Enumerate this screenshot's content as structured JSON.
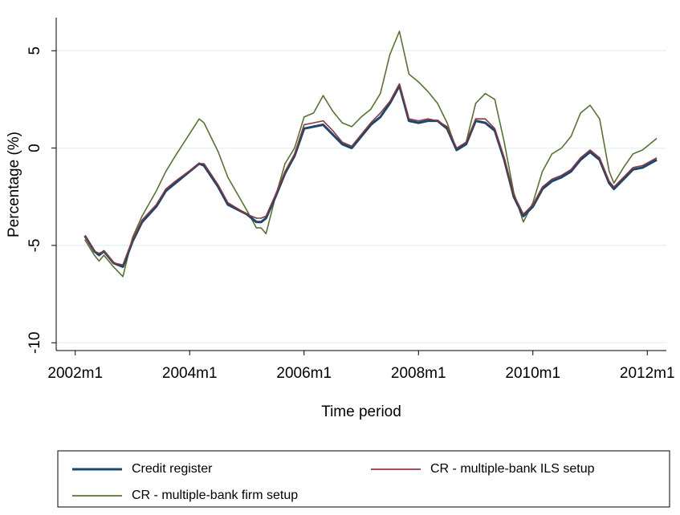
{
  "chart_data": {
    "type": "line",
    "xlabel": "Time period",
    "ylabel": "Percentage (%)",
    "x": [
      "2002m3",
      "2002m5",
      "2002m6",
      "2002m7",
      "2002m9",
      "2002m11",
      "2003m1",
      "2003m3",
      "2003m6",
      "2003m8",
      "2003m10",
      "2004m3",
      "2004m4",
      "2004m7",
      "2004m9",
      "2005m1",
      "2005m3",
      "2005m4",
      "2005m5",
      "2005m7",
      "2005m9",
      "2005m11",
      "2006m1",
      "2006m3",
      "2006m5",
      "2006m7",
      "2006m9",
      "2006m11",
      "2007m1",
      "2007m3",
      "2007m5",
      "2007m7",
      "2007m9",
      "2007m11",
      "2008m1",
      "2008m3",
      "2008m5",
      "2008m7",
      "2008m9",
      "2008m11",
      "2009m1",
      "2009m3",
      "2009m5",
      "2009m7",
      "2009m9",
      "2009m11",
      "2010m1",
      "2010m3",
      "2010m5",
      "2010m7",
      "2010m9",
      "2010m11",
      "2011m1",
      "2011m3",
      "2011m5",
      "2011m6",
      "2011m8",
      "2011m10",
      "2011m12",
      "2012m3"
    ],
    "series": [
      {
        "name": "Credit register",
        "color": "#1a476f",
        "values": [
          -4.5,
          -5.3,
          -5.5,
          -5.3,
          -5.9,
          -6.1,
          -4.8,
          -3.8,
          -3.0,
          -2.2,
          -1.8,
          -0.8,
          -0.9,
          -2.0,
          -2.9,
          -3.4,
          -3.8,
          -3.8,
          -3.6,
          -2.5,
          -1.3,
          -0.4,
          1.0,
          1.1,
          1.2,
          0.7,
          0.2,
          0.0,
          0.6,
          1.2,
          1.6,
          2.3,
          3.2,
          1.4,
          1.3,
          1.4,
          1.4,
          1.0,
          -0.1,
          0.2,
          1.4,
          1.3,
          0.9,
          -0.6,
          -2.5,
          -3.5,
          -3.0,
          -2.1,
          -1.7,
          -1.5,
          -1.2,
          -0.6,
          -0.2,
          -0.6,
          -1.8,
          -2.1,
          -1.6,
          -1.1,
          -1.0,
          -0.6
        ]
      },
      {
        "name": "CR - multiple-bank ILS setup",
        "color": "#90353b",
        "values": [
          -4.5,
          -5.3,
          -5.4,
          -5.3,
          -5.9,
          -6.0,
          -4.7,
          -3.7,
          -2.9,
          -2.1,
          -1.7,
          -0.8,
          -0.8,
          -1.9,
          -2.8,
          -3.4,
          -3.6,
          -3.6,
          -3.5,
          -2.4,
          -1.2,
          -0.3,
          1.2,
          1.3,
          1.4,
          0.9,
          0.3,
          0.1,
          0.7,
          1.3,
          1.8,
          2.4,
          3.3,
          1.5,
          1.4,
          1.5,
          1.4,
          1.1,
          0.0,
          0.3,
          1.5,
          1.5,
          1.0,
          -0.5,
          -2.4,
          -3.4,
          -2.9,
          -2.0,
          -1.6,
          -1.4,
          -1.1,
          -0.5,
          -0.1,
          -0.5,
          -1.7,
          -2.0,
          -1.5,
          -1.0,
          -0.9,
          -0.5
        ]
      },
      {
        "name": "CR - multiple-bank firm setup",
        "color": "#55752f",
        "values": [
          -4.7,
          -5.5,
          -5.8,
          -5.5,
          -6.1,
          -6.6,
          -4.6,
          -3.5,
          -2.2,
          -1.2,
          -0.4,
          1.5,
          1.3,
          -0.2,
          -1.5,
          -3.2,
          -4.1,
          -4.1,
          -4.4,
          -2.5,
          -0.8,
          0.0,
          1.6,
          1.8,
          2.7,
          1.9,
          1.3,
          1.1,
          1.6,
          2.0,
          2.8,
          4.8,
          6.0,
          3.8,
          3.4,
          2.9,
          2.3,
          1.3,
          -0.1,
          0.3,
          2.3,
          2.8,
          2.5,
          0.3,
          -2.3,
          -3.8,
          -2.8,
          -1.2,
          -0.3,
          0.0,
          0.6,
          1.8,
          2.2,
          1.5,
          -1.2,
          -1.8,
          -1.0,
          -0.3,
          -0.1,
          0.5
        ]
      }
    ],
    "xlim": [
      "2001m9",
      "2012m5"
    ],
    "xticks": [
      "2002m1",
      "2004m1",
      "2006m1",
      "2008m1",
      "2010m1",
      "2012m1"
    ],
    "ylim": [
      -10.4,
      6.7
    ],
    "yticks": [
      -10,
      -5,
      0,
      5
    ],
    "grid": true,
    "legend": "bottom"
  }
}
